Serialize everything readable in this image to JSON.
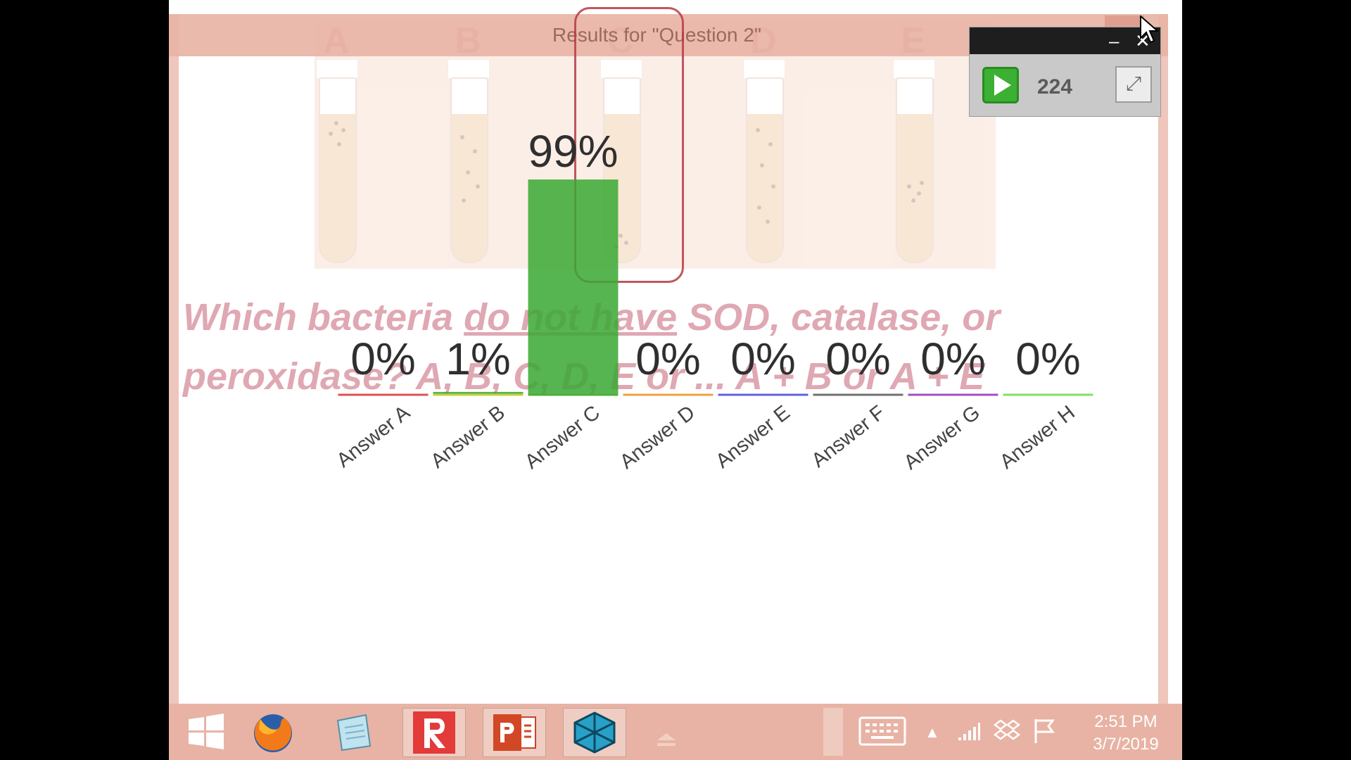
{
  "window": {
    "title": "Results for \"Question 2\""
  },
  "slide": {
    "tube_letters": [
      "A",
      "B",
      "C",
      "D",
      "E"
    ],
    "question_line1_pre": "Which bacteria ",
    "question_line1_u": "do not have",
    "question_line1_post": " SOD, catalase, or",
    "question_line2": "peroxidase? A, B, C, D, E or ... A + B or A + E"
  },
  "timer": {
    "count": "224",
    "min_symbol": "–",
    "close_symbol": "✕",
    "popout_symbol": "⤢"
  },
  "chart_data": {
    "type": "bar",
    "categories": [
      "Answer A",
      "Answer B",
      "Answer C",
      "Answer D",
      "Answer E",
      "Answer F",
      "Answer G",
      "Answer H"
    ],
    "values": [
      0,
      1,
      99,
      0,
      0,
      0,
      0,
      0
    ],
    "value_labels": [
      "0%",
      "1%",
      "99%",
      "0%",
      "0%",
      "0%",
      "0%",
      "0%"
    ],
    "ylim": [
      0,
      100
    ],
    "category_colors": [
      "#e05050",
      "#c8d040",
      "#4caf3c",
      "#f0a040",
      "#6060e0",
      "#707070",
      "#a050c0",
      "#80e060"
    ],
    "bar_color": "#3aa832"
  },
  "taskbar": {
    "items": [
      "start-icon",
      "firefox-icon",
      "notepad-icon",
      "r-app-icon",
      "powerpoint-icon",
      "cube-app-icon"
    ],
    "time": "2:51 PM",
    "date": "3/7/2019"
  }
}
